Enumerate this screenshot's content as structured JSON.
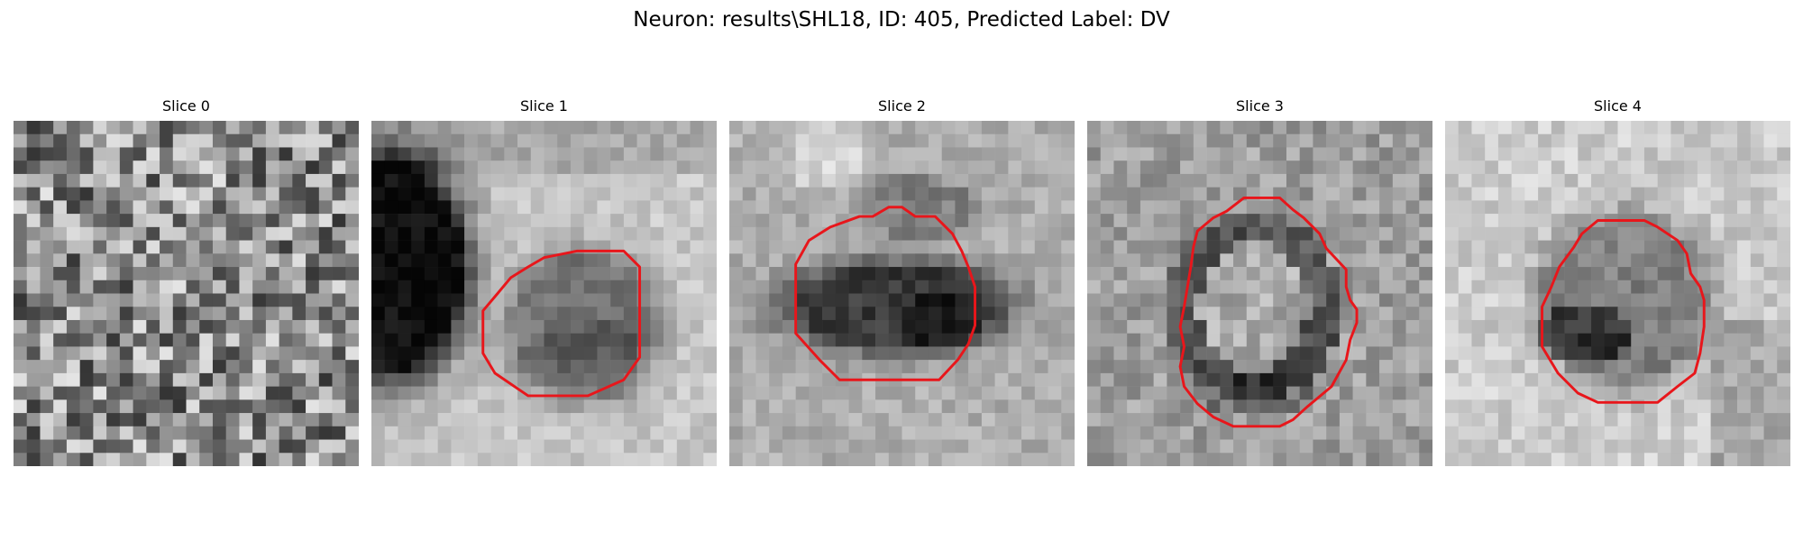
{
  "figure": {
    "title": "Neuron: results\\SHL18, ID: 405, Predicted Label: DV"
  },
  "panels": [
    {
      "title": "Slice 0"
    },
    {
      "title": "Slice 1"
    },
    {
      "title": "Slice 2"
    },
    {
      "title": "Slice 3"
    },
    {
      "title": "Slice 4"
    }
  ],
  "colors": {
    "contour": "#e8161b"
  }
}
